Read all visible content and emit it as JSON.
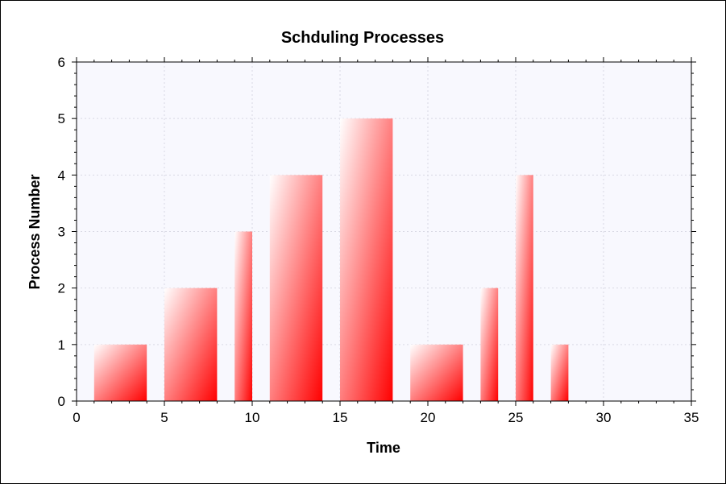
{
  "chart_data": {
    "type": "bar",
    "title": "Schduling Processes",
    "xlabel": "Time",
    "ylabel": "Process Number",
    "xlim": [
      0,
      35
    ],
    "ylim": [
      0,
      6
    ],
    "xticks": [
      "0",
      "5",
      "10",
      "15",
      "20",
      "25",
      "30",
      "35"
    ],
    "yticks": [
      "0",
      "1",
      "2",
      "3",
      "4",
      "5",
      "6"
    ],
    "grid": true,
    "plot_background": "#f8f8fe",
    "bar_color": "#ff0000",
    "bars": [
      {
        "x_start": 1,
        "x_end": 4,
        "value": 1
      },
      {
        "x_start": 5,
        "x_end": 8,
        "value": 2
      },
      {
        "x_start": 9,
        "x_end": 10,
        "value": 3
      },
      {
        "x_start": 11,
        "x_end": 14,
        "value": 4
      },
      {
        "x_start": 15,
        "x_end": 18,
        "value": 5
      },
      {
        "x_start": 19,
        "x_end": 22,
        "value": 1
      },
      {
        "x_start": 23,
        "x_end": 24,
        "value": 2
      },
      {
        "x_start": 25,
        "x_end": 26,
        "value": 4
      },
      {
        "x_start": 27,
        "x_end": 28,
        "value": 1
      }
    ]
  }
}
